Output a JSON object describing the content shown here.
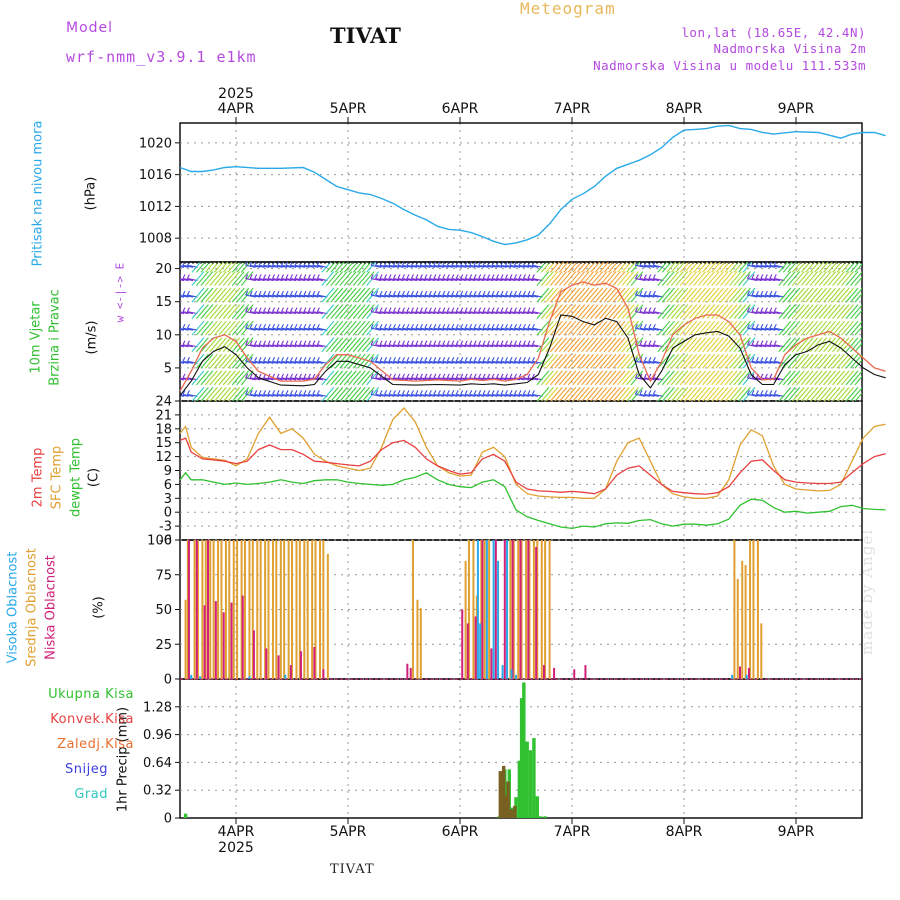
{
  "header": {
    "model_label": "Model",
    "model_name": "wrf-nmm_v3.9.1 e1km",
    "city": "TIVAT",
    "product": "Meteogram",
    "lonlat": "lon,lat (18.65E, 42.4N)",
    "altitude": "Nadmorska Visina 2m",
    "model_altitude": "Nadmorska Visina u modelu 111.533m",
    "footer_city": "TIVAT",
    "watermark": "made by Angel"
  },
  "colors": {
    "pressure": "#29a9e8",
    "temp2m": "#e84040",
    "sfc": "#e0a030",
    "dewpt": "#30c030",
    "high_cloud": "#29a9e8",
    "mid_cloud": "#e0a030",
    "low_cloud": "#d0207a",
    "total_rain": "#30c030",
    "convective": "#e84040",
    "freezing": "#e87030",
    "snow": "#4040e0",
    "hail": "#30c8c0"
  },
  "chart_data": [
    {
      "type": "line",
      "panel": "pressure",
      "ylabel_lines": [
        "Pritisak na nivou mora",
        "(hPa)"
      ],
      "ylim": [
        1005,
        1022.5
      ],
      "yticks": [
        "1008",
        "1012",
        "1016",
        "1020"
      ],
      "x_top_ticks": [
        "4APR",
        "5APR",
        "6APR",
        "7APR",
        "8APR",
        "9APR"
      ],
      "x_top_year": "2025",
      "x_days": [
        -0.5,
        -0.4,
        -0.3,
        -0.2,
        -0.1,
        0.0,
        0.2,
        0.4,
        0.6,
        0.7,
        0.8,
        0.9,
        1.0,
        1.1,
        1.2,
        1.3,
        1.4,
        1.5,
        1.6,
        1.7,
        1.8,
        1.9,
        2.0,
        2.1,
        2.2,
        2.3,
        2.4,
        2.5,
        2.6,
        2.7,
        2.8,
        2.9,
        3.0,
        3.1,
        3.2,
        3.3,
        3.4,
        3.5,
        3.6,
        3.7,
        3.8,
        3.9,
        4.0,
        4.1,
        4.2,
        4.3,
        4.4,
        4.5,
        4.6,
        4.7,
        4.8,
        5.0,
        5.2,
        5.4,
        5.5,
        5.6,
        5.7,
        5.8
      ],
      "values": [
        1016.9,
        1016.4,
        1016.4,
        1016.6,
        1016.9,
        1017.0,
        1016.8,
        1016.8,
        1016.9,
        1016.3,
        1015.4,
        1014.5,
        1014.1,
        1013.7,
        1013.5,
        1013.0,
        1012.4,
        1011.6,
        1010.9,
        1010.3,
        1009.5,
        1009.1,
        1009.0,
        1008.7,
        1008.2,
        1007.6,
        1007.2,
        1007.4,
        1007.8,
        1008.4,
        1009.8,
        1011.6,
        1012.9,
        1013.6,
        1014.5,
        1015.8,
        1016.8,
        1017.3,
        1017.8,
        1018.5,
        1019.4,
        1020.7,
        1021.6,
        1021.7,
        1021.8,
        1022.1,
        1022.2,
        1021.8,
        1021.7,
        1021.3,
        1021.1,
        1021.4,
        1021.3,
        1020.6,
        1021.1,
        1021.3,
        1021.3,
        1020.9
      ]
    },
    {
      "type": "line",
      "panel": "wind",
      "ylabel_lines": [
        "10m Vjetar",
        "Brzina i Pravac",
        "(m/s)"
      ],
      "direction_key": "w <-|-> E",
      "ylim": [
        0,
        21
      ],
      "yticks": [
        "5",
        "10",
        "15",
        "20"
      ],
      "x_days": [
        -0.5,
        -0.4,
        -0.3,
        -0.2,
        -0.1,
        0.0,
        0.1,
        0.2,
        0.4,
        0.6,
        0.7,
        0.8,
        0.9,
        1.0,
        1.2,
        1.4,
        1.6,
        1.8,
        2.0,
        2.1,
        2.2,
        2.3,
        2.4,
        2.5,
        2.6,
        2.7,
        2.8,
        2.9,
        3.0,
        3.1,
        3.2,
        3.3,
        3.4,
        3.5,
        3.6,
        3.7,
        3.8,
        3.9,
        4.0,
        4.1,
        4.2,
        4.3,
        4.4,
        4.5,
        4.6,
        4.7,
        4.8,
        4.9,
        5.0,
        5.1,
        5.2,
        5.3,
        5.4,
        5.5,
        5.6,
        5.7,
        5.8
      ],
      "series": [
        {
          "name": "mean",
          "values": [
            0.8,
            3.0,
            6.0,
            7.5,
            8.2,
            7.0,
            5.0,
            3.5,
            2.4,
            2.3,
            2.5,
            4.5,
            6.0,
            6.0,
            5.0,
            2.5,
            2.4,
            2.5,
            2.4,
            2.6,
            2.5,
            2.6,
            2.4,
            2.6,
            2.8,
            4.0,
            8.0,
            13.0,
            12.8,
            12.0,
            11.5,
            12.5,
            12.0,
            9.5,
            4.0,
            2.0,
            4.5,
            8.0,
            9.0,
            10.0,
            10.3,
            10.5,
            9.8,
            8.0,
            4.0,
            2.5,
            2.5,
            5.5,
            7.0,
            7.5,
            8.5,
            9.0,
            8.0,
            6.5,
            5.0,
            4.0,
            3.5
          ]
        },
        {
          "name": "gust",
          "values": [
            1.5,
            4.5,
            8.0,
            9.5,
            10.0,
            9.0,
            6.5,
            4.5,
            3.0,
            3.0,
            3.3,
            5.5,
            7.0,
            7.0,
            6.0,
            3.2,
            3.0,
            3.2,
            3.0,
            3.3,
            3.1,
            3.3,
            3.0,
            3.3,
            4.0,
            6.5,
            12.0,
            16.5,
            17.5,
            18.0,
            17.5,
            17.8,
            17.0,
            14.0,
            7.0,
            3.0,
            6.0,
            10.0,
            11.5,
            12.5,
            13.0,
            13.0,
            12.0,
            10.0,
            5.0,
            3.2,
            3.3,
            7.0,
            8.5,
            9.5,
            10.0,
            10.5,
            9.5,
            8.0,
            6.5,
            5.0,
            4.5
          ]
        }
      ]
    },
    {
      "type": "line",
      "panel": "temperature",
      "ylabel_lines": [
        "2m Temp",
        "SFC Temp",
        "dewpt Temp",
        "(C)"
      ],
      "ylim": [
        -6,
        24
      ],
      "yticks": [
        "-6",
        "-3",
        "0",
        "3",
        "6",
        "9",
        "12",
        "15",
        "18",
        "21",
        "24"
      ],
      "x_days": [
        -0.5,
        -0.45,
        -0.4,
        -0.3,
        -0.2,
        -0.1,
        0.0,
        0.1,
        0.2,
        0.3,
        0.4,
        0.5,
        0.6,
        0.7,
        0.8,
        0.9,
        1.0,
        1.1,
        1.2,
        1.3,
        1.4,
        1.5,
        1.6,
        1.7,
        1.8,
        1.9,
        2.0,
        2.1,
        2.2,
        2.3,
        2.4,
        2.5,
        2.6,
        2.7,
        2.8,
        2.9,
        3.0,
        3.1,
        3.2,
        3.3,
        3.4,
        3.5,
        3.6,
        3.7,
        3.8,
        3.9,
        4.0,
        4.1,
        4.2,
        4.3,
        4.4,
        4.5,
        4.6,
        4.7,
        4.8,
        4.9,
        5.0,
        5.1,
        5.2,
        5.3,
        5.4,
        5.5,
        5.6,
        5.7,
        5.8
      ],
      "series": [
        {
          "name": "2m Temp",
          "values": [
            15.5,
            16.0,
            13.0,
            11.5,
            11.3,
            11.0,
            10.5,
            11.0,
            13.5,
            14.5,
            13.5,
            13.5,
            12.5,
            11.0,
            10.8,
            10.5,
            10.2,
            10.0,
            11.0,
            13.5,
            15.0,
            15.5,
            14.0,
            11.5,
            10.0,
            9.0,
            8.2,
            8.5,
            11.5,
            12.5,
            11.0,
            6.5,
            5.0,
            4.6,
            4.5,
            4.3,
            4.5,
            4.3,
            4.0,
            5.0,
            8.0,
            9.5,
            10.0,
            8.0,
            6.0,
            4.5,
            4.2,
            4.0,
            3.9,
            4.2,
            5.5,
            8.5,
            11.0,
            11.3,
            9.0,
            7.0,
            6.5,
            6.3,
            6.2,
            6.2,
            6.5,
            8.5,
            10.5,
            12.0,
            12.6
          ]
        },
        {
          "name": "SFC Temp",
          "values": [
            17.0,
            18.5,
            14.0,
            11.8,
            11.5,
            11.2,
            10.0,
            11.5,
            17.0,
            20.5,
            17.0,
            18.0,
            16.0,
            12.5,
            11.0,
            10.0,
            9.5,
            9.0,
            9.5,
            14.0,
            20.0,
            22.5,
            19.5,
            14.0,
            10.0,
            8.5,
            7.8,
            8.0,
            13.0,
            14.0,
            12.0,
            6.0,
            4.0,
            3.5,
            3.3,
            3.2,
            3.2,
            3.0,
            3.0,
            5.0,
            11.0,
            15.0,
            16.0,
            11.0,
            6.0,
            4.0,
            3.3,
            3.0,
            3.0,
            3.5,
            7.0,
            14.5,
            17.8,
            16.5,
            10.0,
            6.0,
            5.0,
            4.8,
            4.6,
            4.7,
            6.0,
            11.0,
            16.0,
            18.5,
            19.0
          ]
        },
        {
          "name": "dewpt Temp",
          "values": [
            7.0,
            8.5,
            7.0,
            7.0,
            6.5,
            6.0,
            6.3,
            6.0,
            6.2,
            6.5,
            7.0,
            6.5,
            6.2,
            6.8,
            7.0,
            7.0,
            6.5,
            6.2,
            6.0,
            5.8,
            6.0,
            7.0,
            7.5,
            8.5,
            7.0,
            6.0,
            5.5,
            5.3,
            6.5,
            7.0,
            5.5,
            0.5,
            -1.0,
            -1.8,
            -2.5,
            -3.2,
            -3.5,
            -3.0,
            -3.2,
            -2.5,
            -2.3,
            -2.4,
            -1.8,
            -1.6,
            -2.5,
            -3.0,
            -2.6,
            -2.6,
            -2.8,
            -2.5,
            -1.5,
            1.5,
            2.8,
            2.6,
            1.0,
            0.0,
            0.2,
            -0.2,
            0.0,
            0.2,
            1.2,
            1.5,
            0.8,
            0.6,
            0.5
          ]
        }
      ]
    },
    {
      "type": "bar",
      "panel": "cloud",
      "ylabel_lines": [
        "Visoka Oblacnost",
        "Srednja Oblacnost",
        "Niska Oblacnost",
        "(%)"
      ],
      "ylim": [
        0,
        100
      ],
      "yticks": [
        "0",
        "25",
        "50",
        "75",
        "100"
      ],
      "series": [
        {
          "name": "Srednja Oblacnost",
          "x_days": [
            -0.45,
            -0.43,
            -0.37,
            -0.34,
            -0.3,
            -0.27,
            -0.23,
            -0.2,
            -0.16,
            -0.13,
            -0.09,
            -0.06,
            -0.02,
            0.01,
            0.05,
            0.08,
            0.12,
            0.15,
            0.19,
            0.22,
            0.26,
            0.29,
            0.33,
            0.36,
            0.4,
            0.43,
            0.47,
            0.5,
            0.54,
            0.57,
            0.61,
            0.64,
            0.68,
            0.71,
            0.75,
            0.78,
            0.82,
            1.58,
            1.62,
            1.65,
            2.05,
            2.08,
            2.12,
            2.15,
            2.19,
            2.22,
            2.26,
            2.45,
            2.48,
            2.52,
            2.55,
            2.59,
            2.62,
            2.66,
            2.69,
            2.73,
            2.76,
            2.8,
            4.45,
            4.48,
            4.52,
            4.55,
            4.59,
            4.62,
            4.66,
            4.69
          ],
          "values": [
            57,
            100,
            100,
            100,
            100,
            100,
            100,
            100,
            100,
            100,
            100,
            100,
            100,
            100,
            100,
            100,
            100,
            100,
            100,
            100,
            100,
            100,
            100,
            100,
            100,
            100,
            100,
            100,
            100,
            100,
            100,
            100,
            100,
            100,
            100,
            100,
            90,
            100,
            57,
            51,
            85,
            100,
            100,
            60,
            100,
            100,
            100,
            100,
            100,
            100,
            100,
            100,
            100,
            100,
            100,
            100,
            100,
            100,
            100,
            72,
            85,
            82,
            100,
            100,
            100,
            40
          ]
        },
        {
          "name": "Niska Oblacnost",
          "x_days": [
            -0.42,
            -0.35,
            -0.28,
            -0.25,
            -0.18,
            -0.11,
            -0.04,
            0.06,
            0.16,
            0.27,
            0.38,
            0.49,
            0.58,
            0.7,
            0.78,
            1.53,
            1.56,
            2.02,
            2.07,
            2.14,
            2.2,
            2.28,
            2.32,
            2.4,
            2.47,
            2.54,
            2.61,
            2.68,
            2.75,
            2.84,
            3.02,
            3.12,
            4.5,
            4.58
          ],
          "values": [
            100,
            100,
            53,
            100,
            56,
            48,
            55,
            60,
            35,
            22,
            17,
            10,
            20,
            23,
            7,
            11,
            8,
            50,
            40,
            45,
            100,
            22,
            100,
            100,
            100,
            100,
            100,
            95,
            10,
            8,
            7,
            10,
            9,
            8
          ]
        },
        {
          "name": "Visoka Oblacnost",
          "x_days": [
            -0.4,
            -0.32,
            0.12,
            0.44,
            2.16,
            2.18,
            2.24,
            2.3,
            2.34,
            2.38,
            2.42,
            2.46,
            2.5,
            4.43,
            4.56
          ],
          "values": [
            3,
            2,
            2,
            3,
            100,
            40,
            100,
            100,
            85,
            10,
            100,
            7,
            3,
            3,
            3
          ]
        }
      ]
    },
    {
      "type": "bar",
      "panel": "precip",
      "ylabel_lines": [
        "1hr Precip (mm)"
      ],
      "legend": [
        "Ukupna Kisa",
        "Konvek.Kisa",
        "Zaledj.Kisa",
        "Snijeg",
        "Grad"
      ],
      "ylim": [
        0,
        1.6
      ],
      "yticks": [
        "0",
        "0.32",
        "0.64",
        "0.96",
        "1.28"
      ],
      "x_bottom_ticks": [
        "4APR",
        "5APR",
        "6APR",
        "7APR",
        "8APR",
        "9APR"
      ],
      "x_bottom_year": "2025",
      "series": [
        {
          "name": "Ukupna Kisa",
          "x_days": [
            -0.45,
            2.35,
            2.38,
            2.4,
            2.42,
            2.44,
            2.47,
            2.5,
            2.53,
            2.55,
            2.57,
            2.6,
            2.63,
            2.66,
            2.69,
            2.72,
            2.76
          ],
          "values": [
            0.05,
            0.02,
            0.48,
            0.56,
            0.2,
            0.56,
            0.12,
            0.24,
            0.66,
            1.38,
            1.56,
            0.88,
            0.78,
            0.92,
            0.25,
            0.02,
            0.02
          ]
        },
        {
          "name": "Konvek.Kisa",
          "x_days": [
            2.36,
            2.39,
            2.41,
            2.43,
            2.46,
            2.49
          ],
          "values": [
            0.54,
            0.6,
            0.26,
            0.42,
            0.1,
            0.14
          ]
        }
      ]
    }
  ]
}
